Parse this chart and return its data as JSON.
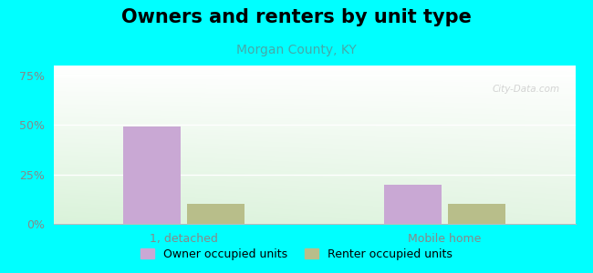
{
  "title": "Owners and renters by unit type",
  "subtitle": "Morgan County, KY",
  "categories": [
    "1, detached",
    "Mobile home"
  ],
  "owner_values": [
    49,
    20
  ],
  "renter_values": [
    10,
    10
  ],
  "owner_color": "#c9a8d4",
  "renter_color": "#b8be8a",
  "yticks": [
    0,
    25,
    50,
    75
  ],
  "ytick_labels": [
    "0%",
    "25%",
    "50%",
    "75%"
  ],
  "ylim": [
    0,
    80
  ],
  "background_outer": "#00ffff",
  "background_plot_topleft": "#f0fff0",
  "background_plot_topright": "#ffffff",
  "background_plot_bottomleft": "#c8e8b8",
  "background_plot_bottomright": "#e8f8e8",
  "title_fontsize": 15,
  "subtitle_fontsize": 10,
  "subtitle_color": "#44aaaa",
  "tick_color": "#888888",
  "legend_labels": [
    "Owner occupied units",
    "Renter occupied units"
  ],
  "bar_width": 0.35,
  "watermark": "City-Data.com",
  "grid_color": "#dddddd"
}
